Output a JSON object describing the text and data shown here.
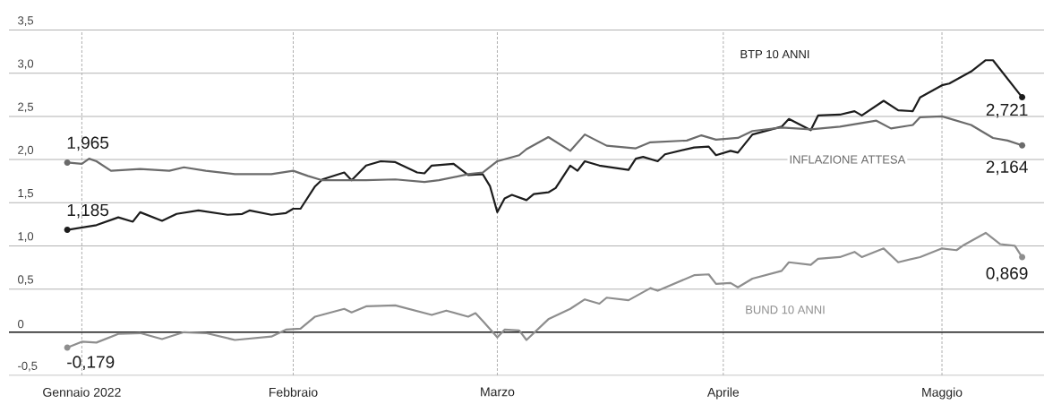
{
  "chart_data": {
    "type": "line",
    "xlim": [
      "2021-12-24",
      "2022-05-15"
    ],
    "xticks": [
      {
        "value": "2022-01-03",
        "label": "Gennaio 2022"
      },
      {
        "value": "2022-02-01",
        "label": "Febbraio"
      },
      {
        "value": "2022-03-01",
        "label": "Marzo"
      },
      {
        "value": "2022-04-01",
        "label": "Aprile"
      },
      {
        "value": "2022-05-01",
        "label": "Maggio"
      }
    ],
    "ylim": [
      -0.5,
      3.5
    ],
    "yticks": [
      {
        "value": -0.5,
        "label": "-0,5"
      },
      0,
      {
        "value": 0.5,
        "label": "0,5"
      },
      {
        "value": 1,
        "label": "1,0"
      },
      {
        "value": 1.5,
        "label": "1,5"
      },
      {
        "value": 2,
        "label": "2,0"
      },
      {
        "value": 2.5,
        "label": "2,5"
      },
      {
        "value": 3,
        "label": "3,0"
      },
      {
        "value": 3.5,
        "label": "3,5"
      }
    ],
    "grid": true,
    "ref_lines": [
      {
        "axis": "y",
        "value": 0,
        "color": "#1a1a1a"
      }
    ],
    "series": [
      {
        "name": "BTP 10 ANNI",
        "color": "#1c1c1c",
        "x": [
          "2022-01-01",
          "2022-01-05",
          "2022-01-08",
          "2022-01-10",
          "2022-01-11",
          "2022-01-14",
          "2022-01-16",
          "2022-01-19",
          "2022-01-23",
          "2022-01-25",
          "2022-01-26",
          "2022-01-29",
          "2022-01-31",
          "2022-02-01",
          "2022-02-02",
          "2022-02-04",
          "2022-02-05",
          "2022-02-08",
          "2022-02-09",
          "2022-02-11",
          "2022-02-13",
          "2022-02-15",
          "2022-02-18",
          "2022-02-19",
          "2022-02-20",
          "2022-02-23",
          "2022-02-25",
          "2022-02-27",
          "2022-02-28",
          "2022-03-01",
          "2022-03-02",
          "2022-03-03",
          "2022-03-05",
          "2022-03-06",
          "2022-03-08",
          "2022-03-09",
          "2022-03-11",
          "2022-03-12",
          "2022-03-13",
          "2022-03-15",
          "2022-03-19",
          "2022-03-20",
          "2022-03-21",
          "2022-03-23",
          "2022-03-24",
          "2022-03-28",
          "2022-03-30",
          "2022-03-31",
          "2022-04-02",
          "2022-04-03",
          "2022-04-05",
          "2022-04-09",
          "2022-04-10",
          "2022-04-13",
          "2022-04-14",
          "2022-04-17",
          "2022-04-19",
          "2022-04-20",
          "2022-04-23",
          "2022-04-25",
          "2022-04-27",
          "2022-04-28",
          "2022-05-01",
          "2022-05-02",
          "2022-05-05",
          "2022-05-07",
          "2022-05-08",
          "2022-05-12"
        ],
        "values": [
          1.185,
          1.24,
          1.33,
          1.28,
          1.39,
          1.29,
          1.37,
          1.41,
          1.36,
          1.37,
          1.41,
          1.36,
          1.38,
          1.43,
          1.43,
          1.69,
          1.77,
          1.85,
          1.76,
          1.93,
          1.98,
          1.97,
          1.85,
          1.84,
          1.93,
          1.95,
          1.82,
          1.83,
          1.69,
          1.39,
          1.55,
          1.59,
          1.53,
          1.6,
          1.62,
          1.67,
          1.93,
          1.87,
          1.98,
          1.93,
          1.88,
          2.01,
          2.03,
          1.98,
          2.06,
          2.14,
          2.15,
          2.05,
          2.1,
          2.08,
          2.29,
          2.38,
          2.47,
          2.34,
          2.51,
          2.52,
          2.56,
          2.51,
          2.68,
          2.57,
          2.56,
          2.72,
          2.86,
          2.88,
          3.02,
          3.15,
          3.15,
          2.721
        ],
        "value_labels": [
          "1,185",
          null,
          null,
          null,
          null,
          null,
          null,
          null,
          null,
          null,
          null,
          null,
          null,
          null,
          null,
          null,
          null,
          null,
          null,
          null,
          null,
          null,
          null,
          null,
          null,
          null,
          null,
          null,
          null,
          null,
          null,
          null,
          null,
          null,
          null,
          null,
          null,
          null,
          null,
          null,
          null,
          null,
          null,
          null,
          null,
          null,
          null,
          null,
          null,
          null,
          null,
          null,
          null,
          null,
          null,
          null,
          null,
          null,
          null,
          null,
          null,
          null,
          null,
          null,
          null,
          null,
          null,
          "2,721"
        ]
      },
      {
        "name": "INFLAZIONE ATTESA",
        "color": "#6b6b6b",
        "x": [
          "2022-01-01",
          "2022-01-03",
          "2022-01-04",
          "2022-01-05",
          "2022-01-07",
          "2022-01-09",
          "2022-01-11",
          "2022-01-15",
          "2022-01-17",
          "2022-01-20",
          "2022-01-24",
          "2022-01-29",
          "2022-02-01",
          "2022-02-03",
          "2022-02-05",
          "2022-02-09",
          "2022-02-11",
          "2022-02-15",
          "2022-02-19",
          "2022-02-21",
          "2022-02-25",
          "2022-02-27",
          "2022-03-01",
          "2022-03-04",
          "2022-03-05",
          "2022-03-08",
          "2022-03-11",
          "2022-03-13",
          "2022-03-16",
          "2022-03-20",
          "2022-03-22",
          "2022-03-27",
          "2022-03-29",
          "2022-03-31",
          "2022-04-03",
          "2022-04-05",
          "2022-04-09",
          "2022-04-13",
          "2022-04-17",
          "2022-04-22",
          "2022-04-24",
          "2022-04-27",
          "2022-04-28",
          "2022-05-01",
          "2022-05-05",
          "2022-05-08",
          "2022-05-10",
          "2022-05-12"
        ],
        "values": [
          1.965,
          1.95,
          2.01,
          1.98,
          1.87,
          1.88,
          1.89,
          1.87,
          1.91,
          1.87,
          1.83,
          1.83,
          1.87,
          1.81,
          1.76,
          1.76,
          1.76,
          1.77,
          1.74,
          1.76,
          1.83,
          1.85,
          1.98,
          2.05,
          2.12,
          2.26,
          2.1,
          2.29,
          2.16,
          2.13,
          2.2,
          2.22,
          2.28,
          2.23,
          2.25,
          2.33,
          2.37,
          2.35,
          2.38,
          2.45,
          2.36,
          2.4,
          2.49,
          2.5,
          2.4,
          2.25,
          2.22,
          2.164
        ],
        "value_labels": [
          "1,965",
          null,
          null,
          null,
          null,
          null,
          null,
          null,
          null,
          null,
          null,
          null,
          null,
          null,
          null,
          null,
          null,
          null,
          null,
          null,
          null,
          null,
          null,
          null,
          null,
          null,
          null,
          null,
          null,
          null,
          null,
          null,
          null,
          null,
          null,
          null,
          null,
          null,
          null,
          null,
          null,
          null,
          null,
          null,
          null,
          null,
          null,
          "2,164"
        ]
      },
      {
        "name": "BUND 10 ANNI",
        "color": "#8e8e8e",
        "x": [
          "2022-01-01",
          "2022-01-03",
          "2022-01-05",
          "2022-01-08",
          "2022-01-11",
          "2022-01-14",
          "2022-01-17",
          "2022-01-20",
          "2022-01-24",
          "2022-01-29",
          "2022-01-31",
          "2022-02-02",
          "2022-02-04",
          "2022-02-08",
          "2022-02-09",
          "2022-02-11",
          "2022-02-15",
          "2022-02-20",
          "2022-02-22",
          "2022-02-25",
          "2022-02-26",
          "2022-02-27",
          "2022-03-01",
          "2022-03-02",
          "2022-03-04",
          "2022-03-05",
          "2022-03-08",
          "2022-03-11",
          "2022-03-13",
          "2022-03-15",
          "2022-03-16",
          "2022-03-19",
          "2022-03-22",
          "2022-03-23",
          "2022-03-28",
          "2022-03-30",
          "2022-03-31",
          "2022-04-02",
          "2022-04-03",
          "2022-04-05",
          "2022-04-09",
          "2022-04-10",
          "2022-04-13",
          "2022-04-14",
          "2022-04-17",
          "2022-04-19",
          "2022-04-20",
          "2022-04-23",
          "2022-04-25",
          "2022-04-28",
          "2022-05-01",
          "2022-05-03",
          "2022-05-04",
          "2022-05-07",
          "2022-05-09",
          "2022-05-11",
          "2022-05-12"
        ],
        "values": [
          -0.179,
          -0.11,
          -0.12,
          -0.02,
          -0.01,
          -0.08,
          0.0,
          -0.01,
          -0.09,
          -0.05,
          0.03,
          0.04,
          0.18,
          0.27,
          0.23,
          0.3,
          0.31,
          0.2,
          0.25,
          0.18,
          0.22,
          0.13,
          -0.06,
          0.03,
          0.02,
          -0.09,
          0.15,
          0.27,
          0.38,
          0.33,
          0.4,
          0.37,
          0.51,
          0.48,
          0.66,
          0.67,
          0.56,
          0.57,
          0.52,
          0.62,
          0.71,
          0.81,
          0.78,
          0.85,
          0.87,
          0.93,
          0.87,
          0.97,
          0.81,
          0.87,
          0.97,
          0.95,
          1.01,
          1.15,
          1.02,
          1.0,
          0.869
        ],
        "value_labels": [
          "-0,179",
          null,
          null,
          null,
          null,
          null,
          null,
          null,
          null,
          null,
          null,
          null,
          null,
          null,
          null,
          null,
          null,
          null,
          null,
          null,
          null,
          null,
          null,
          null,
          null,
          null,
          null,
          null,
          null,
          null,
          null,
          null,
          null,
          null,
          null,
          null,
          null,
          null,
          null,
          null,
          null,
          null,
          null,
          null,
          null,
          null,
          null,
          null,
          null,
          null,
          null,
          null,
          null,
          null,
          null,
          null,
          "0,869"
        ]
      }
    ]
  }
}
